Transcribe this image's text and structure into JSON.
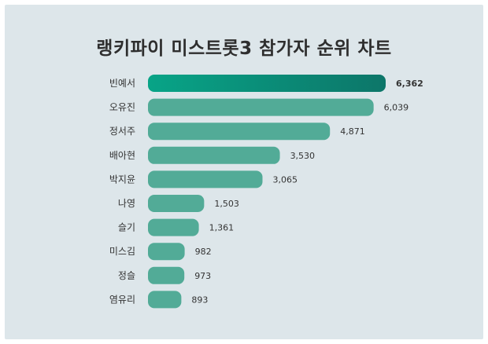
{
  "chart_data": {
    "type": "bar",
    "orientation": "horizontal",
    "title": "랭키파이 미스트롯3 참가자 순위 차트",
    "categories": [
      "빈예서",
      "오유진",
      "정서주",
      "배아현",
      "박지윤",
      "나영",
      "슬기",
      "미스김",
      "정슬",
      "염유리"
    ],
    "values": [
      6362,
      6039,
      4871,
      3530,
      3065,
      1503,
      1361,
      982,
      973,
      893
    ],
    "value_labels": [
      "6,362",
      "6,039",
      "4,871",
      "3,530",
      "3,065",
      "1,503",
      "1,361",
      "982",
      "973",
      "893"
    ],
    "xlim": [
      0,
      6362
    ],
    "grid": false,
    "legend": "none"
  },
  "colors": {
    "background": "#dde6ea",
    "bar": "#52ab97",
    "top_bar_start": "#08a487",
    "top_bar_end": "#0d7669",
    "text": "#333333"
  }
}
